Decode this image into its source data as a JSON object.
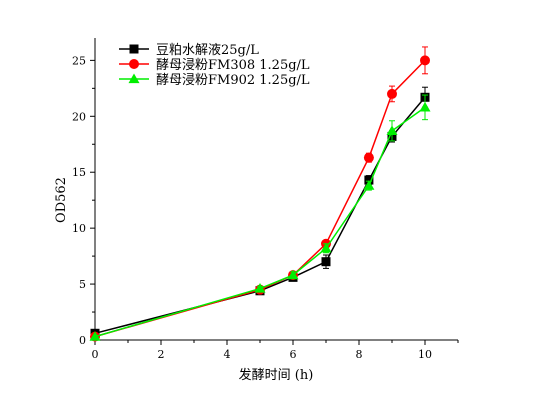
{
  "chart_data": {
    "type": "line",
    "title": "",
    "xlabel": "发酵时间 (h)",
    "ylabel": "OD562",
    "xlim": [
      0,
      11
    ],
    "ylim": [
      0,
      27
    ],
    "xticks": [
      0,
      2,
      4,
      6,
      8,
      10
    ],
    "yticks": [
      0,
      5,
      10,
      15,
      20,
      25
    ],
    "grid": false,
    "legend_position": "top-left",
    "series": [
      {
        "name": "豆粕水解液25g/L",
        "color": "#000000",
        "marker": "square",
        "x": [
          0,
          5,
          6,
          7,
          8.3,
          9,
          10
        ],
        "y": [
          0.6,
          4.4,
          5.6,
          7.0,
          14.3,
          18.2,
          21.7
        ],
        "err": [
          0,
          0.2,
          0.3,
          0.6,
          0.4,
          0.5,
          0.9
        ]
      },
      {
        "name": "酵母浸粉FM308 1.25g/L",
        "color": "#ff0000",
        "marker": "circle",
        "x": [
          0,
          5,
          6,
          7,
          8.3,
          9,
          10
        ],
        "y": [
          0.3,
          4.5,
          5.8,
          8.6,
          16.3,
          22.0,
          25.0
        ],
        "err": [
          0,
          0.2,
          0.3,
          0.3,
          0.4,
          0.7,
          1.2
        ]
      },
      {
        "name": "酵母浸粉FM902 1.25g/L",
        "color": "#00ee00",
        "marker": "triangle",
        "x": [
          0,
          5,
          6,
          7,
          8.3,
          9,
          10
        ],
        "y": [
          0.3,
          4.6,
          5.8,
          8.2,
          13.8,
          18.7,
          20.8
        ],
        "err": [
          0,
          0.2,
          0.3,
          0.4,
          0.4,
          0.9,
          1.1
        ]
      }
    ]
  }
}
